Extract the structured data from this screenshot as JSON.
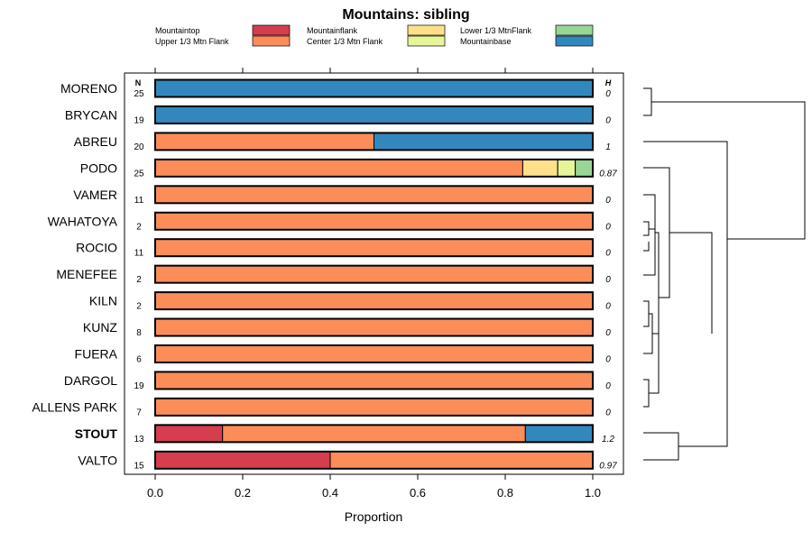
{
  "chart_data": {
    "type": "bar",
    "orientation": "horizontal",
    "stacked": true,
    "title": "Mountains: sibling",
    "xlabel": "Proportion",
    "xlim": [
      0,
      1
    ],
    "xticks": [
      "0.0",
      "0.2",
      "0.4",
      "0.6",
      "0.8",
      "1.0"
    ],
    "n_header": "N",
    "h_header": "H",
    "legend_position": "top",
    "classes": [
      {
        "name": "Mountaintop",
        "color": "#d53e4f"
      },
      {
        "name": "Upper 1/3 Mtn Flank",
        "color": "#fc8d59"
      },
      {
        "name": "Mountainflank",
        "color": "#fee08b"
      },
      {
        "name": "Center 1/3 Mtn Flank",
        "color": "#e6f598"
      },
      {
        "name": "Lower 1/3 MtnFlank",
        "color": "#99d594"
      },
      {
        "name": "Mountainbase",
        "color": "#3288bd"
      }
    ],
    "rows": [
      {
        "label": "MORENO",
        "n": "25",
        "h": "0",
        "bold": false,
        "values": [
          0,
          0,
          0,
          0,
          0,
          1
        ]
      },
      {
        "label": "BRYCAN",
        "n": "19",
        "h": "0",
        "bold": false,
        "values": [
          0,
          0,
          0,
          0,
          0,
          1
        ]
      },
      {
        "label": "ABREU",
        "n": "20",
        "h": "1",
        "bold": false,
        "values": [
          0,
          0.5,
          0,
          0,
          0,
          0.5
        ]
      },
      {
        "label": "PODO",
        "n": "25",
        "h": "0.87",
        "bold": false,
        "values": [
          0,
          0.84,
          0.08,
          0.04,
          0.04,
          0
        ]
      },
      {
        "label": "VAMER",
        "n": "11",
        "h": "0",
        "bold": false,
        "values": [
          0,
          1,
          0,
          0,
          0,
          0
        ]
      },
      {
        "label": "WAHATOYA",
        "n": "2",
        "h": "0",
        "bold": false,
        "values": [
          0,
          1,
          0,
          0,
          0,
          0
        ]
      },
      {
        "label": "ROCIO",
        "n": "11",
        "h": "0",
        "bold": false,
        "values": [
          0,
          1,
          0,
          0,
          0,
          0
        ]
      },
      {
        "label": "MENEFEE",
        "n": "2",
        "h": "0",
        "bold": false,
        "values": [
          0,
          1,
          0,
          0,
          0,
          0
        ]
      },
      {
        "label": "KILN",
        "n": "2",
        "h": "0",
        "bold": false,
        "values": [
          0,
          1,
          0,
          0,
          0,
          0
        ]
      },
      {
        "label": "KUNZ",
        "n": "8",
        "h": "0",
        "bold": false,
        "values": [
          0,
          1,
          0,
          0,
          0,
          0
        ]
      },
      {
        "label": "FUERA",
        "n": "6",
        "h": "0",
        "bold": false,
        "values": [
          0,
          1,
          0,
          0,
          0,
          0
        ]
      },
      {
        "label": "DARGOL",
        "n": "19",
        "h": "0",
        "bold": false,
        "values": [
          0,
          1,
          0,
          0,
          0,
          0
        ]
      },
      {
        "label": "ALLENS PARK",
        "n": "7",
        "h": "0",
        "bold": false,
        "values": [
          0,
          1,
          0,
          0,
          0,
          0
        ]
      },
      {
        "label": "STOUT",
        "n": "13",
        "h": "1.2",
        "bold": true,
        "values": [
          0.154,
          0.692,
          0,
          0,
          0,
          0.154
        ]
      },
      {
        "label": "VALTO",
        "n": "15",
        "h": "0.97",
        "bold": false,
        "values": [
          0.4,
          0.6,
          0,
          0,
          0,
          0
        ]
      }
    ]
  }
}
